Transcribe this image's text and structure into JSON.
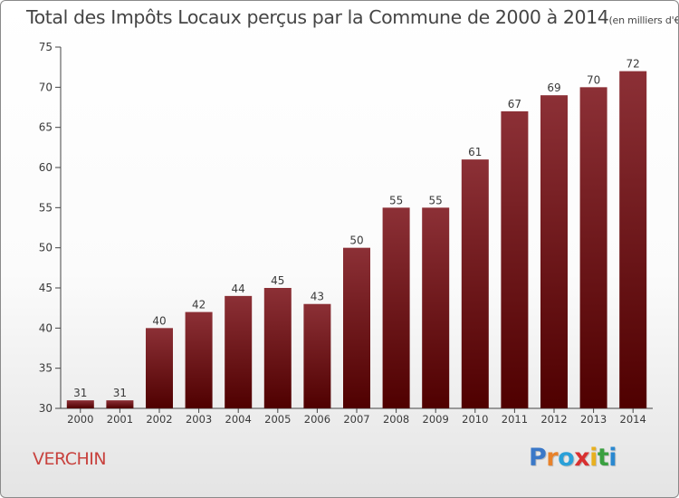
{
  "title": {
    "main": "Total des Impôts Locaux perçus par la Commune de 2000 à 2014",
    "unit": "(en milliers d'€)"
  },
  "commune": "VERCHIN",
  "logo": {
    "letters": [
      "P",
      "r",
      "o",
      "x",
      "i",
      "t",
      "i"
    ],
    "colors": [
      "#3a78c8",
      "#e8822a",
      "#2aa0d8",
      "#d83030",
      "#e8b020",
      "#3aa040",
      "#2a88d0"
    ]
  },
  "colors": {
    "bar_top": "#8c3036",
    "bar_bottom": "#4f0000",
    "axis": "#444444",
    "text": "#3a3a3a"
  },
  "chart_data": {
    "type": "bar",
    "title": "Total des Impôts Locaux perçus par la Commune de 2000 à 2014",
    "xlabel": "",
    "ylabel": "en milliers d'€",
    "categories": [
      "2000",
      "2001",
      "2002",
      "2003",
      "2004",
      "2005",
      "2006",
      "2007",
      "2008",
      "2009",
      "2010",
      "2011",
      "2012",
      "2013",
      "2014"
    ],
    "values": [
      31,
      31,
      40,
      42,
      44,
      45,
      43,
      50,
      55,
      55,
      61,
      67,
      69,
      70,
      72
    ],
    "ylim": [
      30,
      75
    ],
    "yticks": [
      30,
      35,
      40,
      45,
      50,
      55,
      60,
      65,
      70,
      75
    ],
    "grid": false,
    "legend": "none"
  }
}
